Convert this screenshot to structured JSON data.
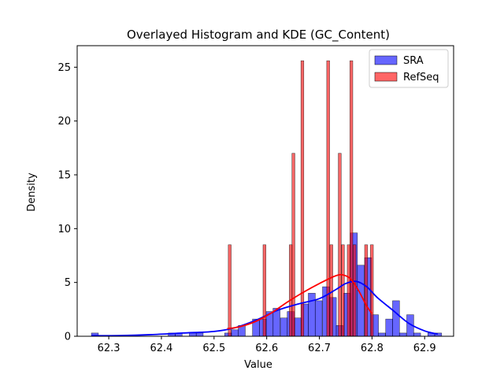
{
  "chart_data": {
    "type": "bar",
    "title": "Overlayed Histogram and KDE (GC_Content)",
    "xlabel": "Value",
    "ylabel": "Density",
    "xlim": [
      62.24,
      62.955
    ],
    "ylim": [
      0,
      27
    ],
    "x_ticks": [
      62.3,
      62.4,
      62.5,
      62.6,
      62.7,
      62.8,
      62.9
    ],
    "x_tick_labels": [
      "62.3",
      "62.4",
      "62.5",
      "62.6",
      "62.7",
      "62.8",
      "62.9"
    ],
    "y_ticks": [
      0,
      5,
      10,
      15,
      20,
      25
    ],
    "y_tick_labels": [
      "0",
      "5",
      "10",
      "15",
      "20",
      "25"
    ],
    "legend": {
      "placement": "top-right",
      "entries": [
        "SRA",
        "RefSeq"
      ]
    },
    "grid": false,
    "series": [
      {
        "name": "SRA",
        "color": "#0000ff",
        "bin_width": 0.0133,
        "bins": [
          [
            62.267,
            0.3
          ],
          [
            62.413,
            0.3
          ],
          [
            62.426,
            0.3
          ],
          [
            62.453,
            0.3
          ],
          [
            62.466,
            0.3
          ],
          [
            62.52,
            0.3
          ],
          [
            62.533,
            0.6
          ],
          [
            62.546,
            1.0
          ],
          [
            62.573,
            1.6
          ],
          [
            62.586,
            1.6
          ],
          [
            62.599,
            2.3
          ],
          [
            62.612,
            2.6
          ],
          [
            62.626,
            1.7
          ],
          [
            62.639,
            2.3
          ],
          [
            62.652,
            1.7
          ],
          [
            62.666,
            3.0
          ],
          [
            62.679,
            4.0
          ],
          [
            62.692,
            3.3
          ],
          [
            62.706,
            4.6
          ],
          [
            62.719,
            3.6
          ],
          [
            62.732,
            1.0
          ],
          [
            62.746,
            4.0
          ],
          [
            62.759,
            9.6
          ],
          [
            62.772,
            6.6
          ],
          [
            62.786,
            7.3
          ],
          [
            62.799,
            2.0
          ],
          [
            62.812,
            0.3
          ],
          [
            62.826,
            1.6
          ],
          [
            62.839,
            3.3
          ],
          [
            62.852,
            0.3
          ],
          [
            62.866,
            2.0
          ],
          [
            62.879,
            0.3
          ],
          [
            62.906,
            0.3
          ],
          [
            62.919,
            0.3
          ]
        ],
        "kde": [
          [
            62.267,
            0.05
          ],
          [
            62.32,
            0.06
          ],
          [
            62.38,
            0.15
          ],
          [
            62.44,
            0.3
          ],
          [
            62.5,
            0.45
          ],
          [
            62.54,
            0.8
          ],
          [
            62.58,
            1.5
          ],
          [
            62.62,
            2.4
          ],
          [
            62.66,
            3.0
          ],
          [
            62.7,
            3.5
          ],
          [
            62.73,
            4.3
          ],
          [
            62.75,
            4.9
          ],
          [
            62.77,
            5.1
          ],
          [
            62.79,
            4.6
          ],
          [
            62.81,
            3.6
          ],
          [
            62.84,
            2.4
          ],
          [
            62.87,
            1.2
          ],
          [
            62.9,
            0.5
          ],
          [
            62.925,
            0.2
          ]
        ]
      },
      {
        "name": "RefSeq",
        "color": "#ff0000",
        "bin_width": 0.0055,
        "bins": [
          [
            62.527,
            8.5
          ],
          [
            62.593,
            8.5
          ],
          [
            62.643,
            8.5
          ],
          [
            62.648,
            17.0
          ],
          [
            62.665,
            25.6
          ],
          [
            62.714,
            25.6
          ],
          [
            62.72,
            8.5
          ],
          [
            62.736,
            17.0
          ],
          [
            62.742,
            8.5
          ],
          [
            62.753,
            8.5
          ],
          [
            62.758,
            25.6
          ],
          [
            62.764,
            8.5
          ],
          [
            62.786,
            8.5
          ],
          [
            62.797,
            8.5
          ]
        ],
        "kde": [
          [
            62.525,
            0.7
          ],
          [
            62.55,
            0.9
          ],
          [
            62.58,
            1.4
          ],
          [
            62.61,
            2.2
          ],
          [
            62.64,
            3.2
          ],
          [
            62.67,
            4.1
          ],
          [
            62.7,
            4.9
          ],
          [
            62.73,
            5.6
          ],
          [
            62.745,
            5.7
          ],
          [
            62.76,
            5.3
          ],
          [
            62.775,
            4.2
          ],
          [
            62.79,
            2.8
          ],
          [
            62.8,
            2.1
          ]
        ]
      }
    ]
  }
}
